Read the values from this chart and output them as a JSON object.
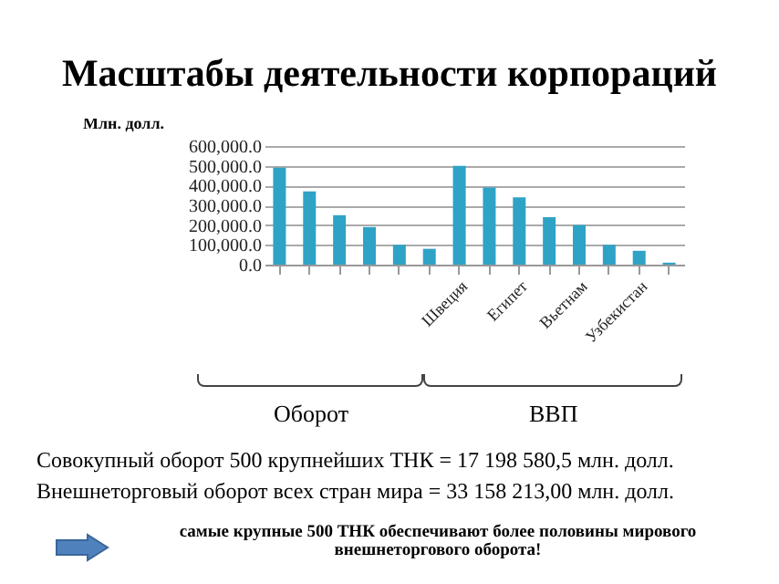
{
  "chart_data": {
    "type": "bar",
    "title": "Масштабы деятельности корпораций",
    "ylabel": "Млн. долл.",
    "categories": [
      null,
      null,
      null,
      null,
      null,
      null,
      "Швеция",
      null,
      "Египет",
      null,
      "Вьетнам",
      null,
      "Узбекистан",
      null
    ],
    "values": [
      490000,
      370000,
      250000,
      190000,
      100000,
      80000,
      500000,
      390000,
      340000,
      240000,
      200000,
      100000,
      70000,
      10000
    ],
    "color": "#2ea3c6",
    "ylim": [
      0,
      600000
    ],
    "yticks": [
      {
        "value": 0,
        "label": "0.0"
      },
      {
        "value": 100000,
        "label": "100,000.0"
      },
      {
        "value": 200000,
        "label": "200,000.0"
      },
      {
        "value": 300000,
        "label": "300,000.0"
      },
      {
        "value": 400000,
        "label": "400,000.0"
      },
      {
        "value": 500000,
        "label": "500,000.0"
      },
      {
        "value": 600000,
        "label": "600,000.0"
      }
    ],
    "grid": "y",
    "annotations": [
      "Оборот",
      "ВВП",
      "Совокупный оборот 500 крупнейших ТНК = 17 198 580,5 млн. долл.",
      "Внешнеторговый оборот всех стран мира = 33 158 213,00 млн. долл.",
      "самые крупные 500 ТНК обеспечивают более половины мирового внешнеторгового оборота!"
    ]
  }
}
